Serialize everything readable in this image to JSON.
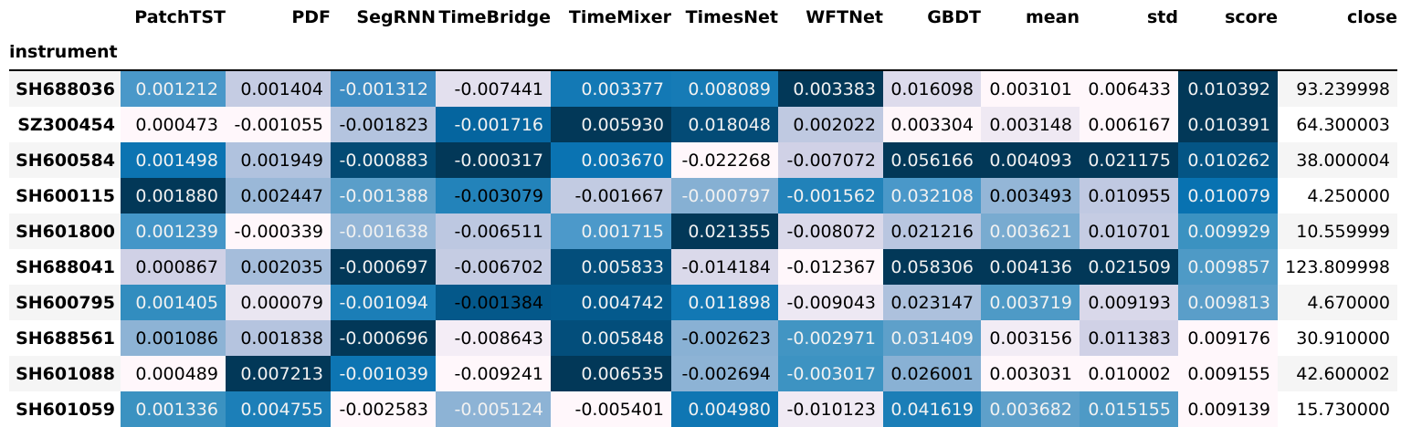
{
  "columns": [
    "PatchTST",
    "PDF",
    "SegRNN",
    "TimeBridge",
    "TimeMixer",
    "TimesNet",
    "WFTNet",
    "GBDT",
    "mean",
    "std",
    "score",
    "close"
  ],
  "index_name": "instrument",
  "rows": [
    {
      "instrument": "SH688036",
      "values": [
        "0.001212",
        "0.001404",
        "-0.001312",
        "-0.007441",
        "0.003377",
        "0.008089",
        "0.003383",
        "0.016098",
        "0.003101",
        "0.006433",
        "0.010392",
        "93.239998"
      ],
      "bg": [
        "#4a98c9",
        "#c5cce3",
        "#3d8dc4",
        "#e3e0ee",
        "#1379b5",
        "#167bb6",
        "#023858",
        "#dddbec",
        "#fff7fb",
        "#fff7fb",
        "#023858",
        ""
      ],
      "fg": [
        "#f1f1f1",
        "#000000",
        "#f1f1f1",
        "#000000",
        "#f1f1f1",
        "#f1f1f1",
        "#f1f1f1",
        "#000000",
        "#000000",
        "#000000",
        "#f1f1f1",
        "#000000"
      ]
    },
    {
      "instrument": "SZ300454",
      "values": [
        "0.000473",
        "-0.001055",
        "-0.001823",
        "-0.001716",
        "0.005930",
        "0.018048",
        "0.002022",
        "0.003304",
        "0.003148",
        "0.006167",
        "0.010391",
        "64.300003"
      ],
      "bg": [
        "#fff7fb",
        "#fff7fb",
        "#b4c4df",
        "#05659f",
        "#023858",
        "#034b76",
        "#bfc9e1",
        "#fef6fa",
        "#efe9f3",
        "#fff7fb",
        "#023858",
        ""
      ],
      "fg": [
        "#000000",
        "#000000",
        "#000000",
        "#f1f1f1",
        "#f1f1f1",
        "#f1f1f1",
        "#000000",
        "#000000",
        "#000000",
        "#000000",
        "#f1f1f1",
        "#000000"
      ]
    },
    {
      "instrument": "SH600584",
      "values": [
        "0.001498",
        "0.001949",
        "-0.000883",
        "-0.000317",
        "0.003670",
        "-0.022268",
        "-0.007072",
        "0.056166",
        "0.004093",
        "0.021175",
        "0.010262",
        "38.000004"
      ],
      "bg": [
        "#0c74b2",
        "#b0c2de",
        "#034a74",
        "#023858",
        "#0a73b2",
        "#fff7fb",
        "#d0d1e6",
        "#023858",
        "#023858",
        "#023858",
        "#045585",
        ""
      ],
      "fg": [
        "#f1f1f1",
        "#000000",
        "#f1f1f1",
        "#f1f1f1",
        "#f1f1f1",
        "#000000",
        "#000000",
        "#f1f1f1",
        "#f1f1f1",
        "#f1f1f1",
        "#f1f1f1",
        "#000000"
      ]
    },
    {
      "instrument": "SH600115",
      "values": [
        "0.001880",
        "0.002447",
        "-0.001388",
        "-0.003079",
        "-0.001667",
        "-0.000797",
        "-0.001562",
        "0.032108",
        "0.003493",
        "0.010955",
        "0.010079",
        "4.250000"
      ],
      "bg": [
        "#023858",
        "#9ab8d8",
        "#5a9ec9",
        "#2383ba",
        "#c2cbe2",
        "#86b0d3",
        "#2182b9",
        "#4a98c9",
        "#94b6d7",
        "#c0c9e2",
        "#0872b1",
        ""
      ],
      "fg": [
        "#f1f1f1",
        "#000000",
        "#f1f1f1",
        "#000000",
        "#000000",
        "#f1f1f1",
        "#f1f1f1",
        "#f1f1f1",
        "#000000",
        "#000000",
        "#f1f1f1",
        "#000000"
      ]
    },
    {
      "instrument": "SH601800",
      "values": [
        "0.001239",
        "-0.000339",
        "-0.001638",
        "-0.006511",
        "0.001715",
        "0.021355",
        "-0.008072",
        "0.021216",
        "0.003621",
        "0.010701",
        "0.009929",
        "10.559999"
      ],
      "bg": [
        "#4496c8",
        "#fff7fb",
        "#94b6d7",
        "#bdc8e1",
        "#4c99ca",
        "#023858",
        "#dad9ea",
        "#b9c6e0",
        "#79abd0",
        "#c5cce3",
        "#3b92c1",
        ""
      ],
      "fg": [
        "#f1f1f1",
        "#000000",
        "#f1f1f1",
        "#000000",
        "#f1f1f1",
        "#f1f1f1",
        "#000000",
        "#000000",
        "#f1f1f1",
        "#000000",
        "#f1f1f1",
        "#000000"
      ]
    },
    {
      "instrument": "SH688041",
      "values": [
        "0.000867",
        "0.002035",
        "-0.000697",
        "-0.006702",
        "0.005833",
        "-0.014184",
        "-0.012367",
        "0.058306",
        "0.004136",
        "0.021509",
        "0.009857",
        "123.809998"
      ],
      "bg": [
        "#d0d1e6",
        "#a5bddb",
        "#023858",
        "#c5cce3",
        "#034e7b",
        "#dad9ea",
        "#fff7fb",
        "#023858",
        "#023858",
        "#023858",
        "#4e9ac6",
        ""
      ],
      "fg": [
        "#000000",
        "#000000",
        "#f1f1f1",
        "#000000",
        "#f1f1f1",
        "#000000",
        "#000000",
        "#f1f1f1",
        "#f1f1f1",
        "#f1f1f1",
        "#f1f1f1",
        "#000000"
      ]
    },
    {
      "instrument": "SH600795",
      "values": [
        "0.001405",
        "0.000079",
        "-0.001094",
        "-0.001384",
        "0.004742",
        "0.011898",
        "-0.009043",
        "0.023147",
        "0.003719",
        "0.009193",
        "0.009813",
        "4.670000"
      ],
      "bg": [
        "#328dbf",
        "#eae6f1",
        "#1b7eb7",
        "#04588a",
        "#045a8d",
        "#1278b4",
        "#ede8f3",
        "#adc1dd",
        "#4e9ac6",
        "#d9d8ea",
        "#5a9ec9",
        ""
      ],
      "fg": [
        "#f1f1f1",
        "#000000",
        "#f1f1f1",
        "#000000",
        "#f1f1f1",
        "#f1f1f1",
        "#000000",
        "#000000",
        "#f1f1f1",
        "#000000",
        "#f1f1f1",
        "#000000"
      ]
    },
    {
      "instrument": "SH688561",
      "values": [
        "0.001086",
        "0.001838",
        "-0.000696",
        "-0.008643",
        "0.005848",
        "-0.002623",
        "-0.002971",
        "0.031409",
        "0.003156",
        "0.011383",
        "0.009176",
        "30.910000"
      ],
      "bg": [
        "#8db3d5",
        "#b5c4df",
        "#023858",
        "#f4edf6",
        "#034e7b",
        "#89b1d4",
        "#4295c3",
        "#5ea0ca",
        "#f2ecf5",
        "#d0d1e6",
        "#fff7fb",
        ""
      ],
      "fg": [
        "#000000",
        "#000000",
        "#f1f1f1",
        "#000000",
        "#f1f1f1",
        "#000000",
        "#f1f1f1",
        "#f1f1f1",
        "#000000",
        "#000000",
        "#000000",
        "#000000"
      ]
    },
    {
      "instrument": "SH601088",
      "values": [
        "0.000489",
        "0.007213",
        "-0.001039",
        "-0.009241",
        "0.006535",
        "-0.002694",
        "-0.003017",
        "0.026001",
        "0.003031",
        "0.010002",
        "0.009155",
        "42.600002"
      ],
      "bg": [
        "#fff7fb",
        "#023858",
        "#0d75b3",
        "#fff7fb",
        "#023858",
        "#8db3d5",
        "#3d93c2",
        "#89b1d4",
        "#fff7fb",
        "#fff7fb",
        "#fff7fb",
        ""
      ],
      "fg": [
        "#000000",
        "#f1f1f1",
        "#f1f1f1",
        "#000000",
        "#f1f1f1",
        "#000000",
        "#f1f1f1",
        "#000000",
        "#000000",
        "#000000",
        "#000000",
        "#000000"
      ]
    },
    {
      "instrument": "SH601059",
      "values": [
        "0.001336",
        "0.004755",
        "-0.002583",
        "-0.005124",
        "-0.005401",
        "0.004980",
        "-0.010123",
        "0.041619",
        "0.003682",
        "0.015155",
        "0.009139",
        "15.730000"
      ],
      "bg": [
        "#3b92c1",
        "#1c7fb8",
        "#fff7fb",
        "#8db3d5",
        "#fff7fb",
        "#0f76b3",
        "#f0eaf4",
        "#1b7eb7",
        "#5ea0ca",
        "#4e9ac6",
        "#fff7fb",
        ""
      ],
      "fg": [
        "#f1f1f1",
        "#f1f1f1",
        "#000000",
        "#f1f1f1",
        "#000000",
        "#f1f1f1",
        "#000000",
        "#f1f1f1",
        "#f1f1f1",
        "#f1f1f1",
        "#000000",
        "#000000"
      ]
    }
  ]
}
